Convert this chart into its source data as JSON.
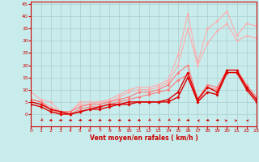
{
  "xlabel": "Vent moyen/en rafales ( km/h )",
  "bg_color": "#c8ecec",
  "grid_color": "#aacccc",
  "x_ticks": [
    0,
    1,
    2,
    3,
    4,
    5,
    6,
    7,
    8,
    9,
    10,
    11,
    12,
    13,
    14,
    15,
    16,
    17,
    18,
    19,
    20,
    21,
    22,
    23
  ],
  "y_ticks": [
    0,
    5,
    10,
    15,
    20,
    25,
    30,
    35,
    40,
    45
  ],
  "xlim": [
    0,
    23
  ],
  "ylim": [
    0,
    46
  ],
  "series": [
    {
      "color": "#ffaaaa",
      "x": [
        0,
        1,
        2,
        3,
        4,
        5,
        6,
        7,
        8,
        9,
        10,
        11,
        12,
        13,
        14,
        15,
        16,
        17,
        18,
        19,
        20,
        21,
        22,
        23
      ],
      "y": [
        9,
        6,
        5,
        1,
        1,
        5,
        5,
        5,
        6,
        8,
        10,
        11,
        11,
        12,
        14,
        24,
        41,
        21,
        35,
        38,
        42,
        32,
        37,
        36
      ],
      "marker": "o",
      "ms": 1.5,
      "lw": 0.8
    },
    {
      "color": "#ffaaaa",
      "x": [
        0,
        1,
        2,
        3,
        4,
        5,
        6,
        7,
        8,
        9,
        10,
        11,
        12,
        13,
        14,
        15,
        16,
        17,
        18,
        19,
        20,
        21,
        22,
        23
      ],
      "y": [
        6,
        5,
        3,
        1,
        1,
        4,
        4,
        5,
        5,
        7,
        9,
        10,
        10,
        11,
        13,
        20,
        35,
        20,
        29,
        34,
        37,
        30,
        32,
        31
      ],
      "marker": "o",
      "ms": 1.5,
      "lw": 0.8
    },
    {
      "color": "#ff7777",
      "x": [
        0,
        1,
        2,
        3,
        4,
        5,
        6,
        7,
        8,
        9,
        10,
        11,
        12,
        13,
        14,
        15,
        16,
        17,
        18,
        19,
        20,
        21,
        22,
        23
      ],
      "y": [
        6,
        5,
        2,
        1,
        1,
        3,
        4,
        4,
        5,
        6,
        7,
        9,
        9,
        10,
        12,
        17,
        20,
        6,
        12,
        11,
        18,
        18,
        12,
        7
      ],
      "marker": "D",
      "ms": 1.5,
      "lw": 0.8
    },
    {
      "color": "#ff7777",
      "x": [
        0,
        1,
        2,
        3,
        4,
        5,
        6,
        7,
        8,
        9,
        10,
        11,
        12,
        13,
        14,
        15,
        16,
        17,
        18,
        19,
        20,
        21,
        22,
        23
      ],
      "y": [
        6,
        5,
        2,
        0,
        0,
        2,
        3,
        3,
        4,
        5,
        6,
        7,
        8,
        9,
        10,
        14,
        16,
        5,
        11,
        10,
        17,
        17,
        11,
        6
      ],
      "marker": "D",
      "ms": 1.5,
      "lw": 0.8
    },
    {
      "color": "#dd0000",
      "x": [
        0,
        1,
        2,
        3,
        4,
        5,
        6,
        7,
        8,
        9,
        10,
        11,
        12,
        13,
        14,
        15,
        16,
        17,
        18,
        19,
        20,
        21,
        22,
        23
      ],
      "y": [
        5,
        4,
        2,
        1,
        0,
        1,
        2,
        3,
        4,
        4,
        5,
        5,
        5,
        5,
        6,
        9,
        17,
        6,
        11,
        9,
        18,
        18,
        11,
        6
      ],
      "marker": "P",
      "ms": 2.0,
      "lw": 1.0
    },
    {
      "color": "#dd0000",
      "x": [
        0,
        1,
        2,
        3,
        4,
        5,
        6,
        7,
        8,
        9,
        10,
        11,
        12,
        13,
        14,
        15,
        16,
        17,
        18,
        19,
        20,
        21,
        22,
        23
      ],
      "y": [
        4,
        3,
        1,
        0,
        0,
        1,
        2,
        2,
        3,
        4,
        4,
        5,
        5,
        5,
        5,
        7,
        15,
        5,
        9,
        8,
        17,
        17,
        10,
        5
      ],
      "marker": "P",
      "ms": 2.0,
      "lw": 1.0
    }
  ],
  "wind_dirs": [
    225,
    225,
    270,
    270,
    270,
    270,
    270,
    270,
    270,
    270,
    270,
    270,
    225,
    225,
    225,
    225,
    270,
    315,
    270,
    270,
    45,
    45,
    315,
    45
  ]
}
